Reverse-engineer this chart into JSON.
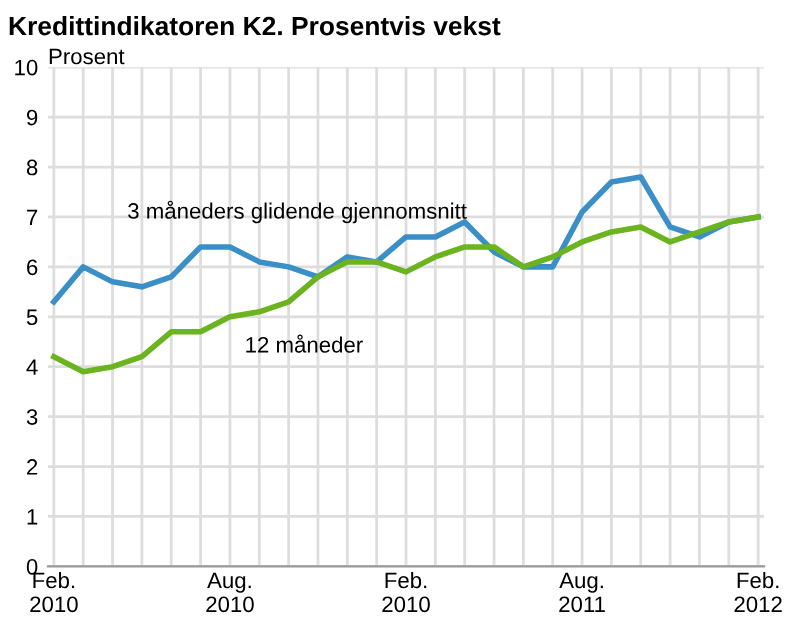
{
  "chart_data": {
    "type": "line",
    "title": "Kredittindikatoren K2. Prosentvis vekst",
    "ylabel": "Prosent",
    "categories": [
      "Feb.\n2010",
      null,
      null,
      null,
      null,
      null,
      "Aug.\n2010",
      null,
      null,
      null,
      null,
      null,
      "Feb.\n2010",
      null,
      null,
      null,
      null,
      null,
      "Aug.\n2011",
      null,
      null,
      null,
      null,
      null,
      "Feb.\n2012"
    ],
    "series": [
      {
        "name": "3 måneders glidende gjennomsnitt",
        "color": "#3a8fc6",
        "values": [
          5.3,
          6.0,
          5.7,
          5.6,
          5.8,
          6.4,
          6.4,
          6.1,
          6.0,
          5.8,
          6.2,
          6.1,
          6.6,
          6.6,
          6.9,
          6.3,
          6.0,
          6.0,
          7.1,
          7.7,
          7.8,
          6.8,
          6.6,
          6.9,
          7.0
        ]
      },
      {
        "name": "12 måneder",
        "color": "#6bb31f",
        "values": [
          4.2,
          3.9,
          4.0,
          4.2,
          4.7,
          4.7,
          5.0,
          5.1,
          5.3,
          5.8,
          6.1,
          6.1,
          5.9,
          6.2,
          6.4,
          6.4,
          6.0,
          6.2,
          6.5,
          6.7,
          6.8,
          6.5,
          6.7,
          6.9,
          7.0
        ]
      }
    ],
    "ylim": [
      0,
      10
    ],
    "yticks": [
      0,
      1,
      2,
      3,
      4,
      5,
      6,
      7,
      8,
      9,
      10
    ],
    "grid": true,
    "legend": false,
    "marker": "none",
    "line_style": "solid"
  }
}
